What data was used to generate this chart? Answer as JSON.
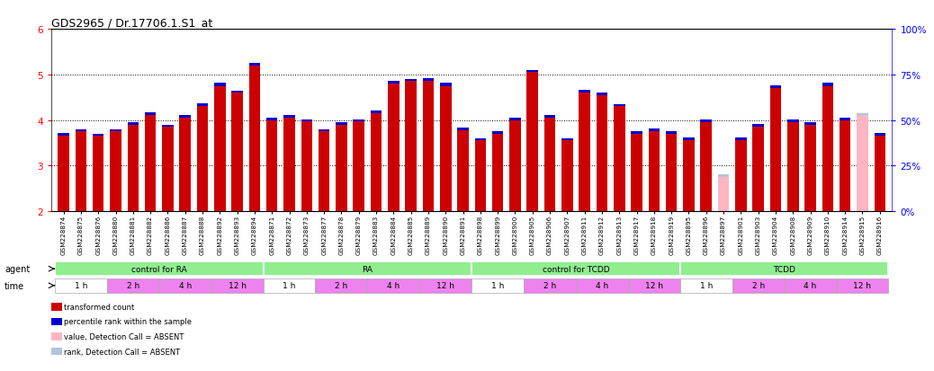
{
  "title": "GDS2965 / Dr.17706.1.S1_at",
  "gsm_labels": [
    "GSM228874",
    "GSM228875",
    "GSM228876",
    "GSM228880",
    "GSM228881",
    "GSM228882",
    "GSM228886",
    "GSM228887",
    "GSM228888",
    "GSM228892",
    "GSM228893",
    "GSM228894",
    "GSM228871",
    "GSM228872",
    "GSM228873",
    "GSM228877",
    "GSM228878",
    "GSM228879",
    "GSM228883",
    "GSM228884",
    "GSM228885",
    "GSM228889",
    "GSM228890",
    "GSM228891",
    "GSM228898",
    "GSM228899",
    "GSM228900",
    "GSM228905",
    "GSM228906",
    "GSM228907",
    "GSM228911",
    "GSM228912",
    "GSM228913",
    "GSM228917",
    "GSM228918",
    "GSM228919",
    "GSM228895",
    "GSM228896",
    "GSM228897",
    "GSM228901",
    "GSM228903",
    "GSM228904",
    "GSM228908",
    "GSM228909",
    "GSM228910",
    "GSM228914",
    "GSM228915",
    "GSM228916"
  ],
  "red_values": [
    3.65,
    3.75,
    3.65,
    3.75,
    3.9,
    4.1,
    3.85,
    4.05,
    4.3,
    4.75,
    4.6,
    5.2,
    4.0,
    4.05,
    3.97,
    3.75,
    3.9,
    3.97,
    4.15,
    4.8,
    4.85,
    4.85,
    4.75,
    3.78,
    3.55,
    3.7,
    4.0,
    5.05,
    4.05,
    3.55,
    4.6,
    4.55,
    4.3,
    3.7,
    3.75,
    3.7,
    3.55,
    3.95,
    2.75,
    3.55,
    3.85,
    4.7,
    3.95,
    3.9,
    4.75,
    4.0,
    4.1,
    3.65
  ],
  "blue_values": [
    0.06,
    0.05,
    0.05,
    0.05,
    0.06,
    0.06,
    0.05,
    0.05,
    0.06,
    0.06,
    0.05,
    0.05,
    0.05,
    0.05,
    0.05,
    0.05,
    0.05,
    0.05,
    0.06,
    0.06,
    0.05,
    0.06,
    0.06,
    0.05,
    0.05,
    0.05,
    0.06,
    0.05,
    0.05,
    0.05,
    0.06,
    0.06,
    0.05,
    0.05,
    0.06,
    0.05,
    0.06,
    0.06,
    0.05,
    0.06,
    0.06,
    0.06,
    0.06,
    0.06,
    0.06,
    0.06,
    0.05,
    0.06
  ],
  "absent_mask": [
    0,
    0,
    0,
    0,
    0,
    0,
    0,
    0,
    0,
    0,
    0,
    0,
    0,
    0,
    0,
    0,
    0,
    0,
    0,
    0,
    0,
    0,
    0,
    0,
    0,
    0,
    0,
    0,
    0,
    0,
    0,
    0,
    0,
    0,
    0,
    0,
    0,
    0,
    1,
    0,
    0,
    0,
    0,
    0,
    0,
    0,
    1,
    0
  ],
  "absent_red_values": [
    0,
    0,
    0,
    0,
    0,
    0,
    0,
    0,
    0,
    0,
    0,
    0,
    0,
    0,
    0,
    0,
    0,
    0,
    0,
    0,
    0,
    0,
    0,
    0,
    0,
    0,
    0,
    0,
    0,
    0,
    0,
    0,
    0,
    0,
    0,
    0,
    0,
    0,
    2.75,
    0,
    0,
    0,
    0,
    0,
    0,
    0,
    4.1,
    0
  ],
  "absent_blue_rank": [
    0,
    0,
    0,
    0,
    0,
    0,
    0,
    0,
    0,
    0,
    0,
    0,
    0,
    0,
    0,
    0,
    0,
    0,
    0,
    0,
    0,
    0,
    0,
    0,
    0,
    0,
    0,
    0,
    0,
    0,
    0,
    0,
    0,
    0,
    0,
    0,
    0,
    0,
    0.05,
    0,
    0,
    0,
    0,
    0,
    0,
    0,
    0.05,
    0
  ],
  "ymin": 2,
  "ymax": 6,
  "bar_color": "#CC0000",
  "blue_color": "#0000CC",
  "absent_bar_color": "#FFB6C1",
  "absent_blue_color": "#B0C4DE",
  "bar_width": 0.65,
  "title_fontsize": 9,
  "tick_label_fontsize": 5.2,
  "agent_groups": [
    {
      "label": "control for RA",
      "start": 0,
      "end": 12
    },
    {
      "label": "RA",
      "start": 12,
      "end": 24
    },
    {
      "label": "control for TCDD",
      "start": 24,
      "end": 36
    },
    {
      "label": "TCDD",
      "start": 36,
      "end": 48
    }
  ],
  "time_groups": [
    {
      "label": "1 h",
      "start": 0,
      "end": 3,
      "color": "#FFFFFF"
    },
    {
      "label": "2 h",
      "start": 3,
      "end": 6,
      "color": "#EE82EE"
    },
    {
      "label": "4 h",
      "start": 6,
      "end": 9,
      "color": "#EE82EE"
    },
    {
      "label": "12 h",
      "start": 9,
      "end": 12,
      "color": "#EE82EE"
    },
    {
      "label": "1 h",
      "start": 12,
      "end": 15,
      "color": "#FFFFFF"
    },
    {
      "label": "2 h",
      "start": 15,
      "end": 18,
      "color": "#EE82EE"
    },
    {
      "label": "4 h",
      "start": 18,
      "end": 21,
      "color": "#EE82EE"
    },
    {
      "label": "12 h",
      "start": 21,
      "end": 24,
      "color": "#EE82EE"
    },
    {
      "label": "1 h",
      "start": 24,
      "end": 27,
      "color": "#FFFFFF"
    },
    {
      "label": "2 h",
      "start": 27,
      "end": 30,
      "color": "#EE82EE"
    },
    {
      "label": "4 h",
      "start": 30,
      "end": 33,
      "color": "#EE82EE"
    },
    {
      "label": "12 h",
      "start": 33,
      "end": 36,
      "color": "#EE82EE"
    },
    {
      "label": "1 h",
      "start": 36,
      "end": 39,
      "color": "#FFFFFF"
    },
    {
      "label": "2 h",
      "start": 39,
      "end": 42,
      "color": "#EE82EE"
    },
    {
      "label": "4 h",
      "start": 42,
      "end": 45,
      "color": "#EE82EE"
    },
    {
      "label": "12 h",
      "start": 45,
      "end": 48,
      "color": "#EE82EE"
    }
  ],
  "legend_items": [
    {
      "color": "#CC0000",
      "label": "transformed count"
    },
    {
      "color": "#0000CC",
      "label": "percentile rank within the sample"
    },
    {
      "color": "#FFB6C1",
      "label": "value, Detection Call = ABSENT"
    },
    {
      "color": "#B0C4DE",
      "label": "rank, Detection Call = ABSENT"
    }
  ],
  "agent_color": "#90EE90",
  "right_ticks_pct": [
    0,
    25,
    50,
    75,
    100
  ],
  "right_tick_labels": [
    "0%",
    "25%",
    "50%",
    "75%",
    "100%"
  ]
}
